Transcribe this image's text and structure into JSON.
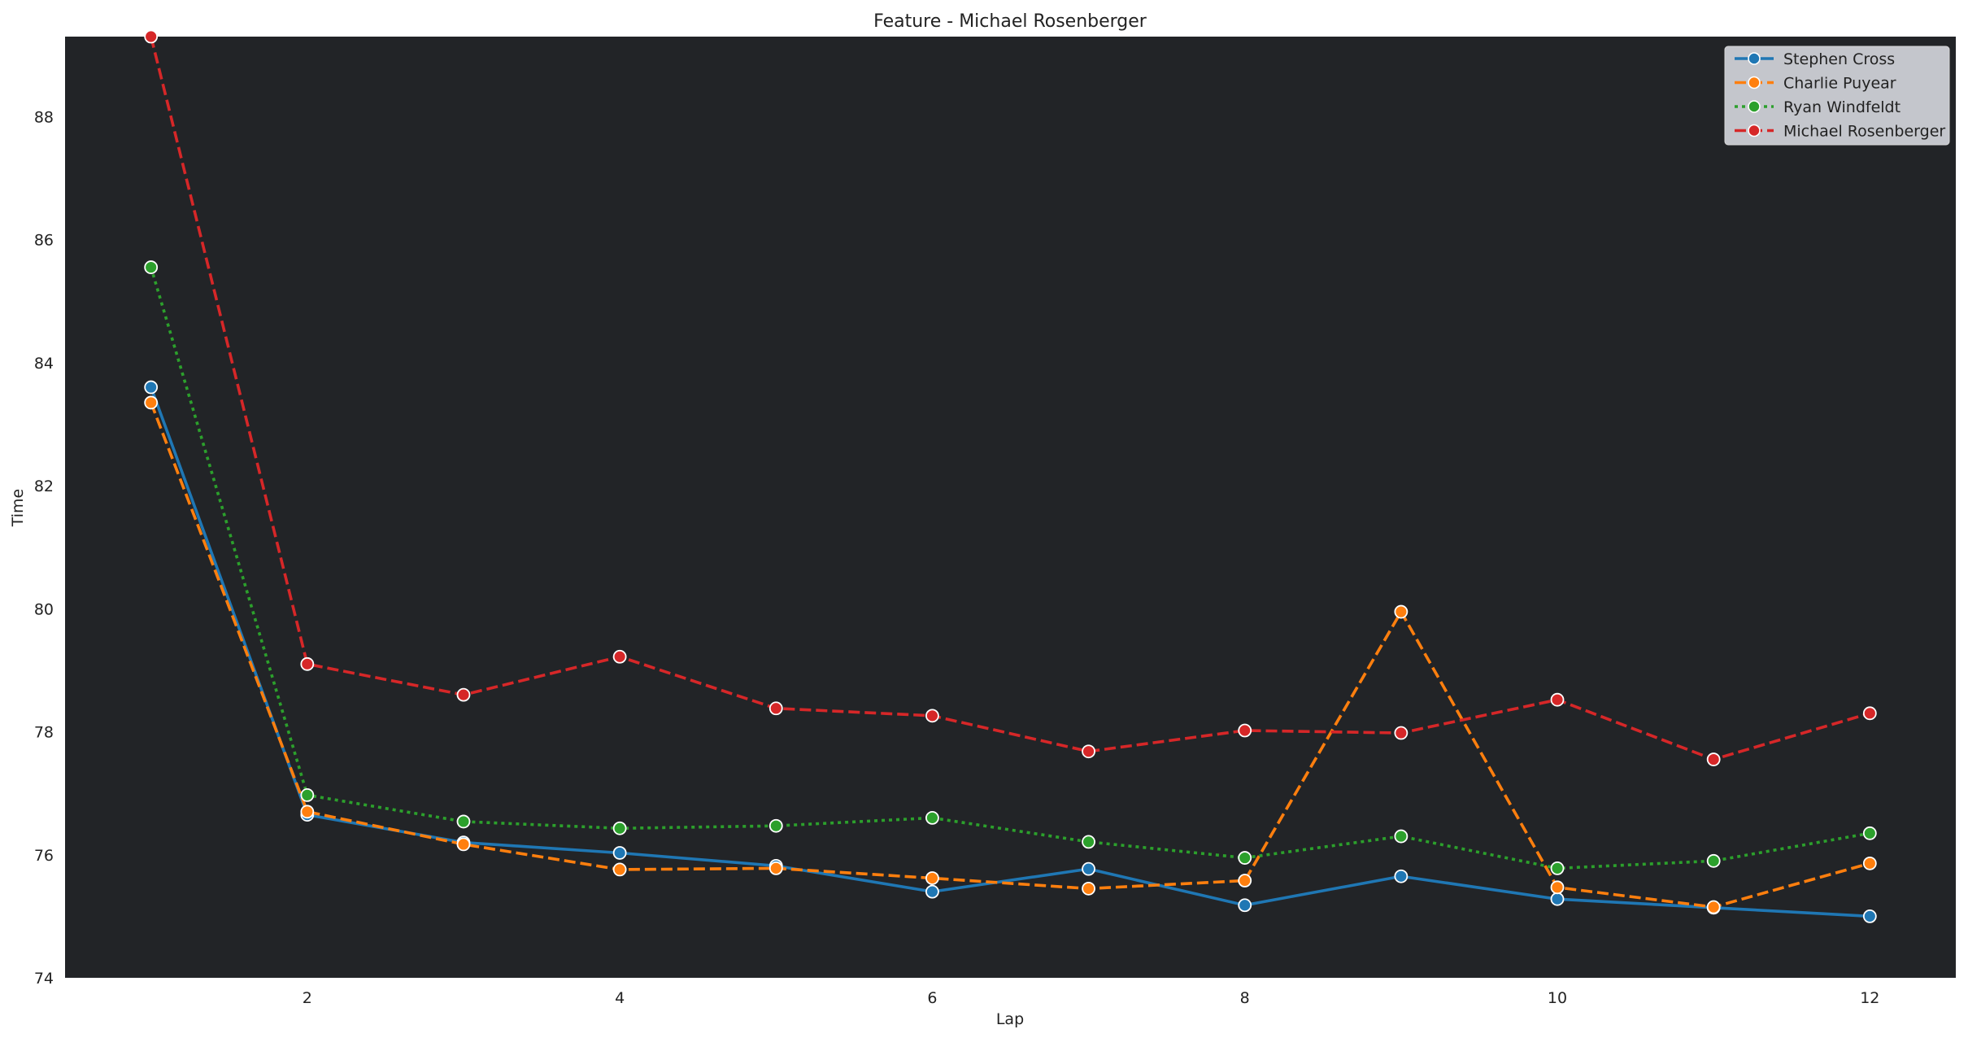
{
  "chart_data": {
    "type": "line",
    "title": "Feature - Michael Rosenberger",
    "xlabel": "Lap",
    "ylabel": "Time",
    "xlim": [
      0.45,
      12.55
    ],
    "ylim": [
      74,
      89.3
    ],
    "xticks": [
      2,
      4,
      6,
      8,
      10,
      12
    ],
    "yticks": [
      74,
      76,
      78,
      80,
      82,
      84,
      86,
      88
    ],
    "grid": false,
    "legend_position": "top-right",
    "x": [
      1,
      2,
      3,
      4,
      5,
      6,
      7,
      8,
      9,
      10,
      11,
      12
    ],
    "series": [
      {
        "name": "Stephen Cross",
        "color": "#1f77b4",
        "style": "solid",
        "values": [
          83.6,
          76.65,
          76.2,
          76.03,
          75.82,
          75.4,
          75.77,
          75.18,
          75.65,
          75.28,
          75.14,
          75.0
        ]
      },
      {
        "name": "Charlie Puyear",
        "color": "#ff7f0e",
        "style": "dashed",
        "values": [
          83.35,
          76.7,
          76.17,
          75.76,
          75.78,
          75.62,
          75.45,
          75.58,
          79.95,
          75.47,
          75.15,
          75.86
        ]
      },
      {
        "name": "Ryan Windfeldt",
        "color": "#2ca02c",
        "style": "dotted",
        "values": [
          85.55,
          76.97,
          76.54,
          76.43,
          76.47,
          76.6,
          76.21,
          75.95,
          76.3,
          75.78,
          75.9,
          76.35
        ]
      },
      {
        "name": "Michael Rosenberger",
        "color": "#d62728",
        "style": "dashed",
        "values": [
          89.3,
          79.1,
          78.6,
          79.22,
          78.38,
          78.26,
          77.68,
          78.02,
          77.98,
          78.52,
          77.55,
          78.3
        ]
      }
    ]
  },
  "colors": {
    "plot_background": "#222427",
    "legend_background": "#c4c6cc"
  }
}
